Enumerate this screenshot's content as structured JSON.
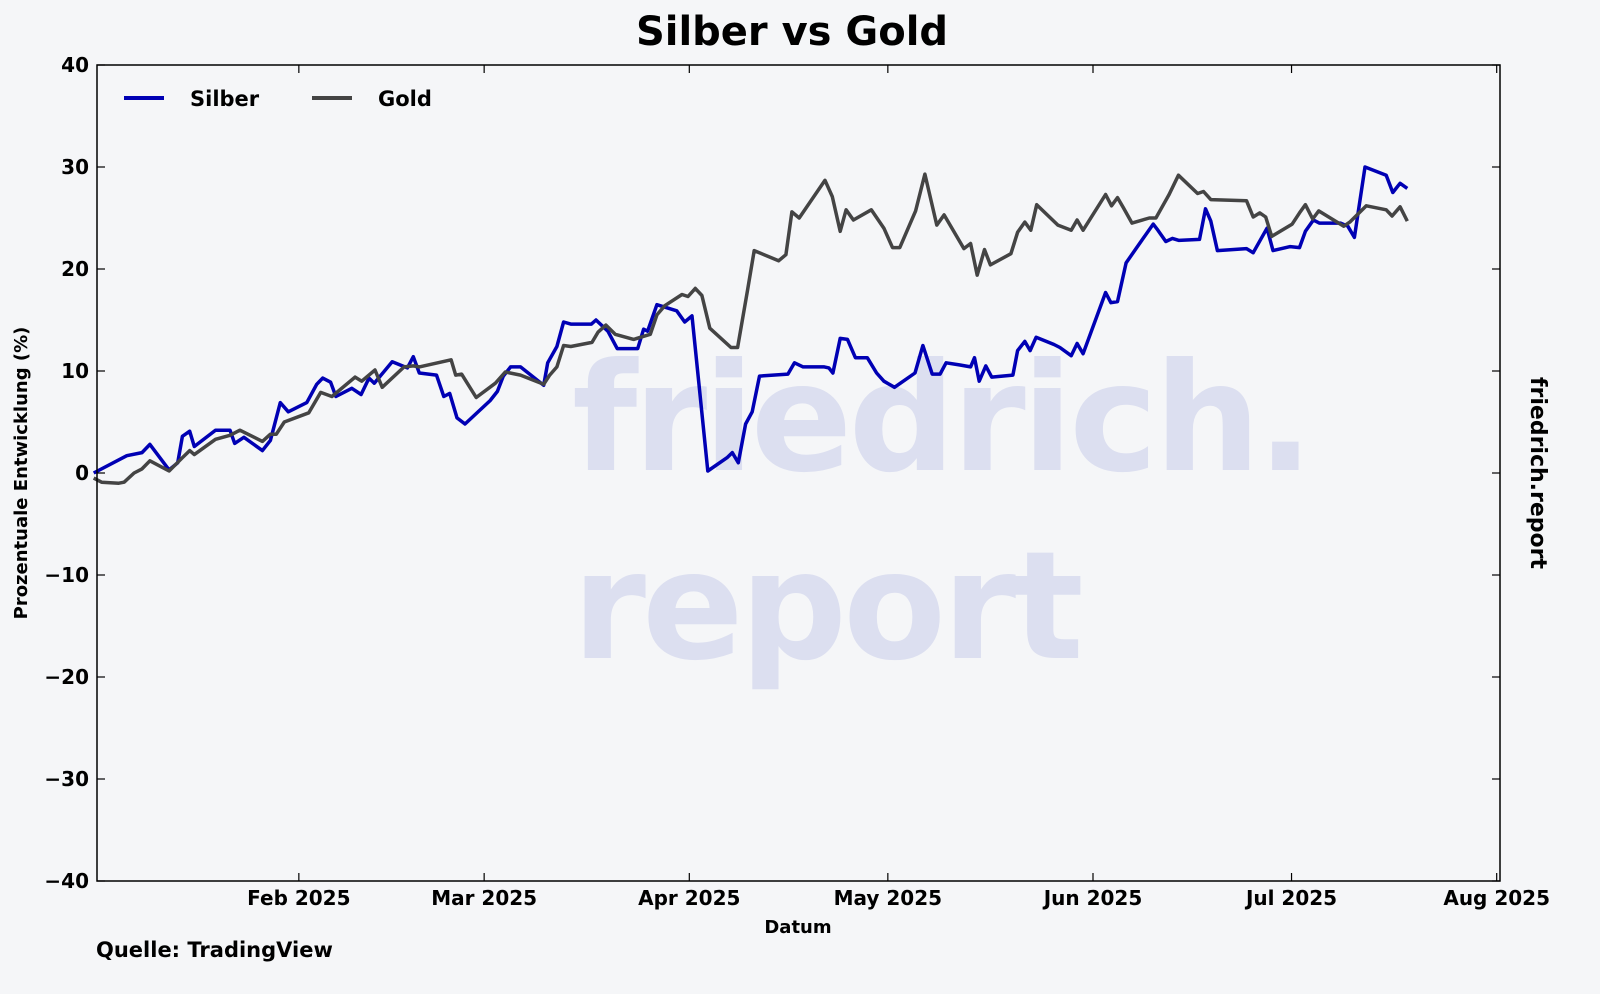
{
  "chart_data": {
    "type": "line",
    "title": "Silber vs Gold",
    "xlabel": "Datum",
    "ylabel": "Prozentuale Entwicklung (%)",
    "x_unit": "days since 2025-01-01",
    "xlim": [
      0.5,
      212.5
    ],
    "ylim": [
      -40,
      40
    ],
    "yticks": [
      -40,
      -30,
      -20,
      -10,
      0,
      10,
      20,
      30,
      40
    ],
    "ytick_labels": [
      "−40",
      "−30",
      "−20",
      "−10",
      "0",
      "10",
      "20",
      "30",
      "40"
    ],
    "xticks": [
      31,
      59,
      90,
      120,
      151,
      181,
      212
    ],
    "xtick_labels": [
      "Feb 2025",
      "Mar 2025",
      "Apr 2025",
      "May 2025",
      "Jun 2025",
      "Jul 2025",
      "Aug 2025"
    ],
    "grid": false,
    "legend_position": "top-left",
    "source": "Quelle: TradingView",
    "brand": "friedrich.report",
    "watermark": [
      "friedrich.",
      "report"
    ],
    "series": [
      {
        "name": "Silber",
        "color": "#0000b4",
        "points": [
          [
            0,
            0
          ],
          [
            5.0,
            1.7
          ],
          [
            7.3,
            2.0
          ],
          [
            8.5,
            2.8
          ],
          [
            11.4,
            0.3
          ],
          [
            12.7,
            1.0
          ],
          [
            13.4,
            3.6
          ],
          [
            14.5,
            4.1
          ],
          [
            15.2,
            2.6
          ],
          [
            18.4,
            4.2
          ],
          [
            20.6,
            4.2
          ],
          [
            21.3,
            2.9
          ],
          [
            22.7,
            3.5
          ],
          [
            25.5,
            2.2
          ],
          [
            26.7,
            3.2
          ],
          [
            28.2,
            6.9
          ],
          [
            29.4,
            6.0
          ],
          [
            32.2,
            6.9
          ],
          [
            33.7,
            8.7
          ],
          [
            34.6,
            9.3
          ],
          [
            35.8,
            8.9
          ],
          [
            36.6,
            7.5
          ],
          [
            39.0,
            8.3
          ],
          [
            40.4,
            7.7
          ],
          [
            41.6,
            9.3
          ],
          [
            42.4,
            8.8
          ],
          [
            45.1,
            10.9
          ],
          [
            47.4,
            10.3
          ],
          [
            48.3,
            11.4
          ],
          [
            49.2,
            9.8
          ],
          [
            51.8,
            9.6
          ],
          [
            52.9,
            7.5
          ],
          [
            53.8,
            7.8
          ],
          [
            54.9,
            5.4
          ],
          [
            56.1,
            4.8
          ],
          [
            59.9,
            7.1
          ],
          [
            61.0,
            8.0
          ],
          [
            61.9,
            9.5
          ],
          [
            63.0,
            10.4
          ],
          [
            64.5,
            10.4
          ],
          [
            68.0,
            8.6
          ],
          [
            68.6,
            10.8
          ],
          [
            70.0,
            12.4
          ],
          [
            71.0,
            14.8
          ],
          [
            72.1,
            14.6
          ],
          [
            75.2,
            14.6
          ],
          [
            75.9,
            15.0
          ],
          [
            77.7,
            13.9
          ],
          [
            79.1,
            12.2
          ],
          [
            82.2,
            12.2
          ],
          [
            83.1,
            14.1
          ],
          [
            83.7,
            13.9
          ],
          [
            85.1,
            16.5
          ],
          [
            88.1,
            15.9
          ],
          [
            89.3,
            14.8
          ],
          [
            90.4,
            15.4
          ],
          [
            92.8,
            0.2
          ],
          [
            95.7,
            1.5
          ],
          [
            96.5,
            2.0
          ],
          [
            97.4,
            1.0
          ],
          [
            98.5,
            4.8
          ],
          [
            99.5,
            6.0
          ],
          [
            100.6,
            9.5
          ],
          [
            104.9,
            9.7
          ],
          [
            105.9,
            10.8
          ],
          [
            107.2,
            10.4
          ],
          [
            110.4,
            10.4
          ],
          [
            111.1,
            10.3
          ],
          [
            111.7,
            9.8
          ],
          [
            112.8,
            13.2
          ],
          [
            113.9,
            13.1
          ],
          [
            115.1,
            11.3
          ],
          [
            116.9,
            11.3
          ],
          [
            118.3,
            9.8
          ],
          [
            119.4,
            9.0
          ],
          [
            121.0,
            8.4
          ],
          [
            124.1,
            9.8
          ],
          [
            125.3,
            12.5
          ],
          [
            126.7,
            9.7
          ],
          [
            127.9,
            9.7
          ],
          [
            128.8,
            10.8
          ],
          [
            130.8,
            10.6
          ],
          [
            132.5,
            10.4
          ],
          [
            133.1,
            11.3
          ],
          [
            133.8,
            9.0
          ],
          [
            134.8,
            10.5
          ],
          [
            135.7,
            9.4
          ],
          [
            138.9,
            9.6
          ],
          [
            139.6,
            12.0
          ],
          [
            140.7,
            12.9
          ],
          [
            141.5,
            12.0
          ],
          [
            142.4,
            13.3
          ],
          [
            145.1,
            12.6
          ],
          [
            146.0,
            12.3
          ],
          [
            147.7,
            11.5
          ],
          [
            148.6,
            12.7
          ],
          [
            149.5,
            11.7
          ],
          [
            152.9,
            17.7
          ],
          [
            153.7,
            16.7
          ],
          [
            154.7,
            16.8
          ],
          [
            156.0,
            20.6
          ],
          [
            157.5,
            22.0
          ],
          [
            160.1,
            24.4
          ],
          [
            160.8,
            23.8
          ],
          [
            162.0,
            22.7
          ],
          [
            163.0,
            23.0
          ],
          [
            164.0,
            22.8
          ],
          [
            167.1,
            22.9
          ],
          [
            168.0,
            25.9
          ],
          [
            168.8,
            24.7
          ],
          [
            169.8,
            21.8
          ],
          [
            174.2,
            22.0
          ],
          [
            175.2,
            21.6
          ],
          [
            177.3,
            24.0
          ],
          [
            178.2,
            21.8
          ],
          [
            180.8,
            22.2
          ],
          [
            182.2,
            22.1
          ],
          [
            183.1,
            23.7
          ],
          [
            184.3,
            24.8
          ],
          [
            185.2,
            24.5
          ],
          [
            188.4,
            24.5
          ],
          [
            189.5,
            24.2
          ],
          [
            190.5,
            23.1
          ],
          [
            192.1,
            30.0
          ],
          [
            195.3,
            29.2
          ],
          [
            196.3,
            27.5
          ],
          [
            197.4,
            28.4
          ],
          [
            198.5,
            27.9
          ]
        ]
      },
      {
        "name": "Gold",
        "color": "#444444",
        "points": [
          [
            0,
            -0.5
          ],
          [
            1.2,
            -0.9
          ],
          [
            3.8,
            -1.0
          ],
          [
            4.6,
            -0.9
          ],
          [
            6.1,
            0.0
          ],
          [
            7.3,
            0.4
          ],
          [
            8.5,
            1.2
          ],
          [
            11.4,
            0.2
          ],
          [
            13.4,
            1.5
          ],
          [
            14.5,
            2.2
          ],
          [
            15.2,
            1.8
          ],
          [
            18.4,
            3.3
          ],
          [
            20.6,
            3.7
          ],
          [
            22.1,
            4.2
          ],
          [
            25.5,
            3.1
          ],
          [
            26.7,
            3.8
          ],
          [
            27.6,
            3.8
          ],
          [
            28.8,
            5.0
          ],
          [
            32.5,
            5.9
          ],
          [
            34.3,
            7.9
          ],
          [
            36.0,
            7.5
          ],
          [
            39.5,
            9.4
          ],
          [
            40.5,
            9.0
          ],
          [
            42.5,
            10.1
          ],
          [
            43.6,
            8.4
          ],
          [
            46.9,
            10.4
          ],
          [
            48.3,
            10.5
          ],
          [
            49.2,
            10.4
          ],
          [
            54.0,
            11.1
          ],
          [
            54.7,
            9.6
          ],
          [
            55.6,
            9.7
          ],
          [
            57.8,
            7.4
          ],
          [
            60.7,
            8.8
          ],
          [
            62.2,
            9.9
          ],
          [
            64.5,
            9.6
          ],
          [
            68.0,
            8.7
          ],
          [
            68.9,
            9.6
          ],
          [
            70.0,
            10.4
          ],
          [
            71.0,
            12.5
          ],
          [
            72.1,
            12.4
          ],
          [
            75.3,
            12.8
          ],
          [
            76.2,
            13.8
          ],
          [
            77.4,
            14.5
          ],
          [
            78.8,
            13.6
          ],
          [
            81.6,
            13.1
          ],
          [
            83.1,
            13.4
          ],
          [
            84.1,
            13.6
          ],
          [
            85.1,
            15.5
          ],
          [
            86.3,
            16.4
          ],
          [
            88.9,
            17.5
          ],
          [
            89.8,
            17.3
          ],
          [
            90.9,
            18.1
          ],
          [
            91.9,
            17.4
          ],
          [
            93.1,
            14.2
          ],
          [
            96.3,
            12.3
          ],
          [
            97.3,
            12.3
          ],
          [
            98.8,
            17.9
          ],
          [
            99.8,
            21.8
          ],
          [
            103.5,
            20.8
          ],
          [
            104.6,
            21.4
          ],
          [
            105.5,
            25.6
          ],
          [
            106.6,
            25.0
          ],
          [
            110.5,
            28.7
          ],
          [
            111.6,
            27.1
          ],
          [
            112.8,
            23.7
          ],
          [
            113.7,
            25.8
          ],
          [
            114.8,
            24.8
          ],
          [
            117.5,
            25.8
          ],
          [
            119.4,
            24.0
          ],
          [
            120.7,
            22.1
          ],
          [
            121.8,
            22.1
          ],
          [
            124.2,
            25.7
          ],
          [
            125.6,
            29.3
          ],
          [
            127.4,
            24.3
          ],
          [
            128.5,
            25.3
          ],
          [
            131.5,
            22.0
          ],
          [
            132.5,
            22.5
          ],
          [
            133.5,
            19.4
          ],
          [
            134.6,
            21.9
          ],
          [
            135.5,
            20.4
          ],
          [
            138.6,
            21.5
          ],
          [
            139.6,
            23.6
          ],
          [
            140.7,
            24.6
          ],
          [
            141.6,
            23.8
          ],
          [
            142.5,
            26.3
          ],
          [
            145.7,
            24.3
          ],
          [
            147.7,
            23.8
          ],
          [
            148.6,
            24.8
          ],
          [
            149.5,
            23.8
          ],
          [
            152.9,
            27.3
          ],
          [
            153.8,
            26.2
          ],
          [
            154.7,
            27.0
          ],
          [
            155.6,
            26.0
          ],
          [
            156.9,
            24.5
          ],
          [
            159.5,
            25.0
          ],
          [
            160.5,
            25.0
          ],
          [
            161.8,
            26.5
          ],
          [
            162.5,
            27.3
          ],
          [
            163.9,
            29.2
          ],
          [
            166.8,
            27.4
          ],
          [
            167.7,
            27.6
          ],
          [
            168.8,
            26.8
          ],
          [
            174.2,
            26.7
          ],
          [
            175.2,
            25.1
          ],
          [
            176.2,
            25.5
          ],
          [
            177.1,
            25.1
          ],
          [
            178.0,
            23.2
          ],
          [
            181.1,
            24.4
          ],
          [
            182.2,
            25.5
          ],
          [
            183.1,
            26.3
          ],
          [
            184.2,
            24.9
          ],
          [
            185.1,
            25.7
          ],
          [
            188.9,
            24.2
          ],
          [
            189.8,
            24.6
          ],
          [
            192.3,
            26.2
          ],
          [
            195.3,
            25.8
          ],
          [
            196.2,
            25.2
          ],
          [
            197.4,
            26.1
          ],
          [
            198.5,
            24.7
          ]
        ]
      }
    ]
  }
}
